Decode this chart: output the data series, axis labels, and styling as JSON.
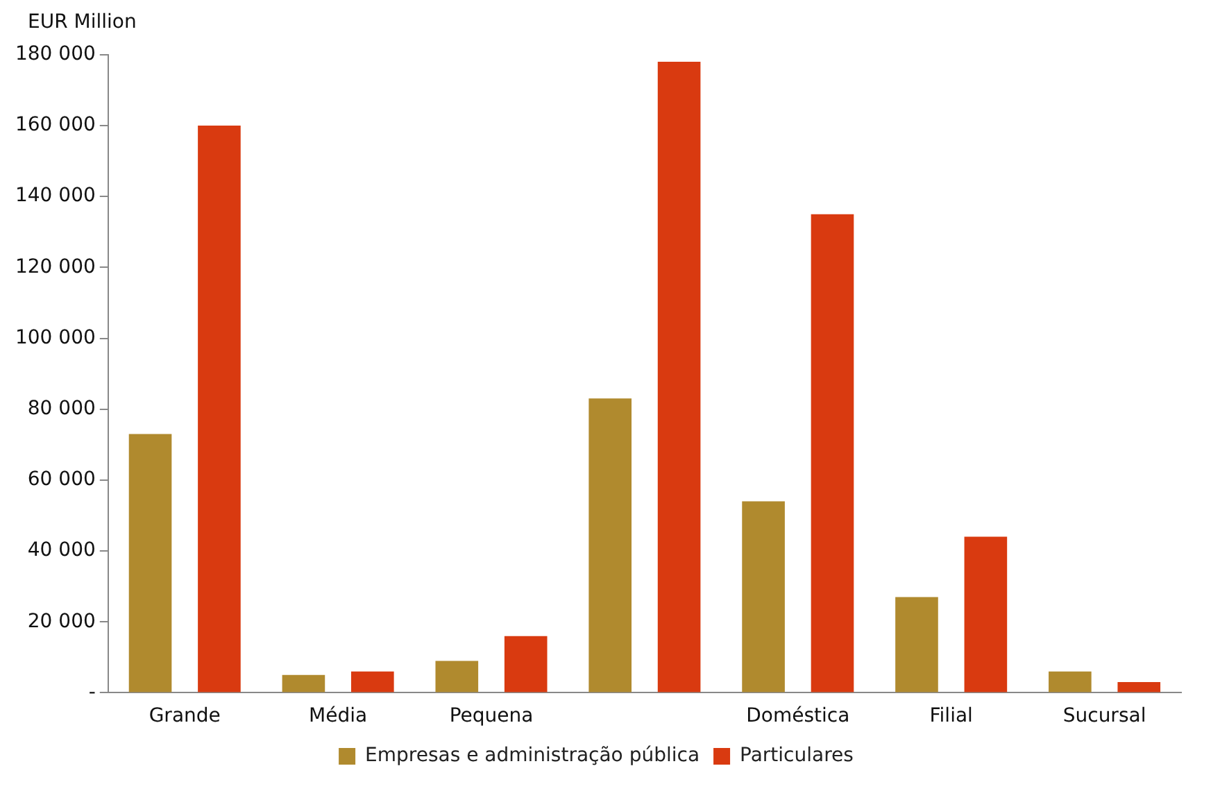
{
  "chart_data": {
    "type": "bar",
    "ylabel": "EUR Million",
    "categories": [
      "Grande",
      "Média",
      "Pequena",
      null,
      "Doméstica",
      "Filial",
      "Sucursal"
    ],
    "series": [
      {
        "name": "Empresas e administração pública",
        "color": "#b08a2e",
        "values": [
          73000,
          5000,
          9000,
          83000,
          54000,
          27000,
          6000
        ]
      },
      {
        "name": "Particulares",
        "color": "#d93a10",
        "values": [
          160000,
          6000,
          16000,
          178000,
          135000,
          44000,
          3000
        ]
      }
    ],
    "ylim": [
      0,
      180000
    ],
    "yticks": [
      {
        "value": 0,
        "label": "-"
      },
      {
        "value": 20000,
        "label": "20 000"
      },
      {
        "value": 40000,
        "label": "40 000"
      },
      {
        "value": 60000,
        "label": "60 000"
      },
      {
        "value": 80000,
        "label": "80 000"
      },
      {
        "value": 100000,
        "label": "100 000"
      },
      {
        "value": 120000,
        "label": "120 000"
      },
      {
        "value": 140000,
        "label": "140 000"
      },
      {
        "value": 160000,
        "label": "160 000"
      },
      {
        "value": 180000,
        "label": "180 000"
      }
    ],
    "grid": false,
    "legend": "bottom"
  }
}
